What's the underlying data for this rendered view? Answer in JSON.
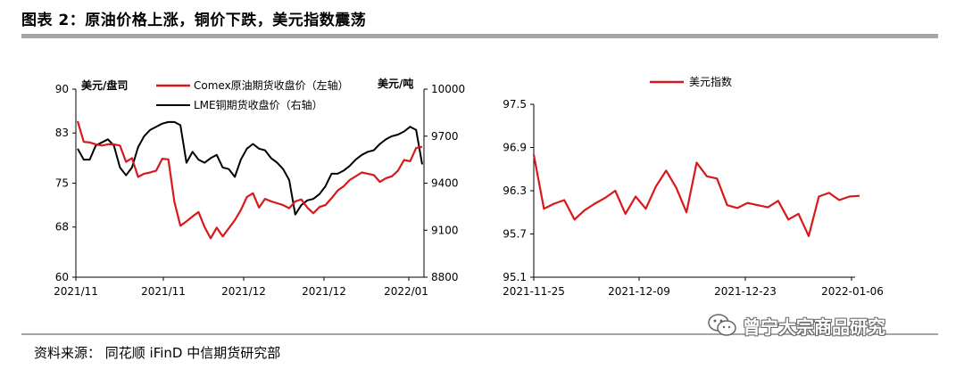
{
  "figure": {
    "title": "图表 2：原油价格上涨，铜价下跌，美元指数震荡",
    "source": "资料来源：  同花顺 iFinD 中信期货研究部",
    "watermark": "曾宁大宗商品研究",
    "watermark_icon": "wechat-icon"
  },
  "chart_data": [
    {
      "type": "line",
      "ylabel_left": "美元/盘司",
      "ylabel_right": "美元/吨",
      "x_ticks": [
        "2021/11",
        "2021/11",
        "2021/12",
        "2021/12",
        "2022/01"
      ],
      "y_left_ticks": [
        "60",
        "68",
        "75",
        "83",
        "90"
      ],
      "y_left_range": [
        60,
        90
      ],
      "y_right_ticks": [
        "8800",
        "9100",
        "9400",
        "9700",
        "10000"
      ],
      "y_right_range": [
        8800,
        10000
      ],
      "grid": false,
      "legend_position": "top",
      "series": [
        {
          "name": "Comex原油期货收盘价（左轴）",
          "axis": "left",
          "color": "#d7191c",
          "values": [
            84.9,
            81.6,
            81.5,
            81.2,
            81.0,
            81.2,
            81.2,
            81.0,
            78.4,
            79.0,
            76.0,
            76.5,
            76.7,
            77.0,
            78.9,
            78.8,
            72.0,
            68.2,
            68.9,
            69.7,
            70.4,
            68.0,
            66.2,
            67.9,
            66.5,
            67.8,
            69.1,
            70.7,
            72.8,
            73.4,
            71.1,
            72.5,
            72.1,
            71.8,
            71.5,
            71.0,
            72.1,
            72.4,
            71.1,
            70.2,
            71.2,
            71.5,
            72.6,
            73.8,
            74.5,
            75.5,
            76.1,
            76.7,
            76.5,
            76.3,
            75.2,
            75.8,
            76.1,
            77.0,
            78.7,
            78.5,
            80.6,
            80.8
          ]
        },
        {
          "name": "LME铜期货收盘价（右轴）",
          "axis": "right",
          "color": "#000000",
          "values": [
            9620,
            9550,
            9550,
            9640,
            9660,
            9680,
            9640,
            9500,
            9450,
            9500,
            9630,
            9700,
            9740,
            9760,
            9780,
            9790,
            9790,
            9770,
            9530,
            9600,
            9550,
            9530,
            9560,
            9580,
            9500,
            9490,
            9440,
            9550,
            9620,
            9650,
            9620,
            9610,
            9560,
            9530,
            9490,
            9420,
            9200,
            9260,
            9290,
            9300,
            9330,
            9380,
            9460,
            9460,
            9480,
            9510,
            9550,
            9580,
            9600,
            9610,
            9650,
            9680,
            9700,
            9710,
            9730,
            9760,
            9740,
            9520
          ]
        }
      ]
    },
    {
      "type": "line",
      "x_ticks": [
        "2021-11-25",
        "2021-12-09",
        "2021-12-23",
        "2022-01-06"
      ],
      "y_ticks": [
        "95.1",
        "95.7",
        "96.3",
        "96.9",
        "97.5"
      ],
      "y_range": [
        95.1,
        97.5
      ],
      "grid": false,
      "legend_position": "top",
      "series": [
        {
          "name": "美元指数",
          "color": "#d7191c",
          "values": [
            96.8,
            96.05,
            96.12,
            96.17,
            95.9,
            96.03,
            96.12,
            96.2,
            96.3,
            95.98,
            96.22,
            96.05,
            96.36,
            96.58,
            96.34,
            96.0,
            96.69,
            96.5,
            96.47,
            96.1,
            96.06,
            96.13,
            96.1,
            96.07,
            96.16,
            95.9,
            95.98,
            95.67,
            96.22,
            96.27,
            96.17,
            96.22,
            96.23
          ]
        }
      ]
    }
  ]
}
